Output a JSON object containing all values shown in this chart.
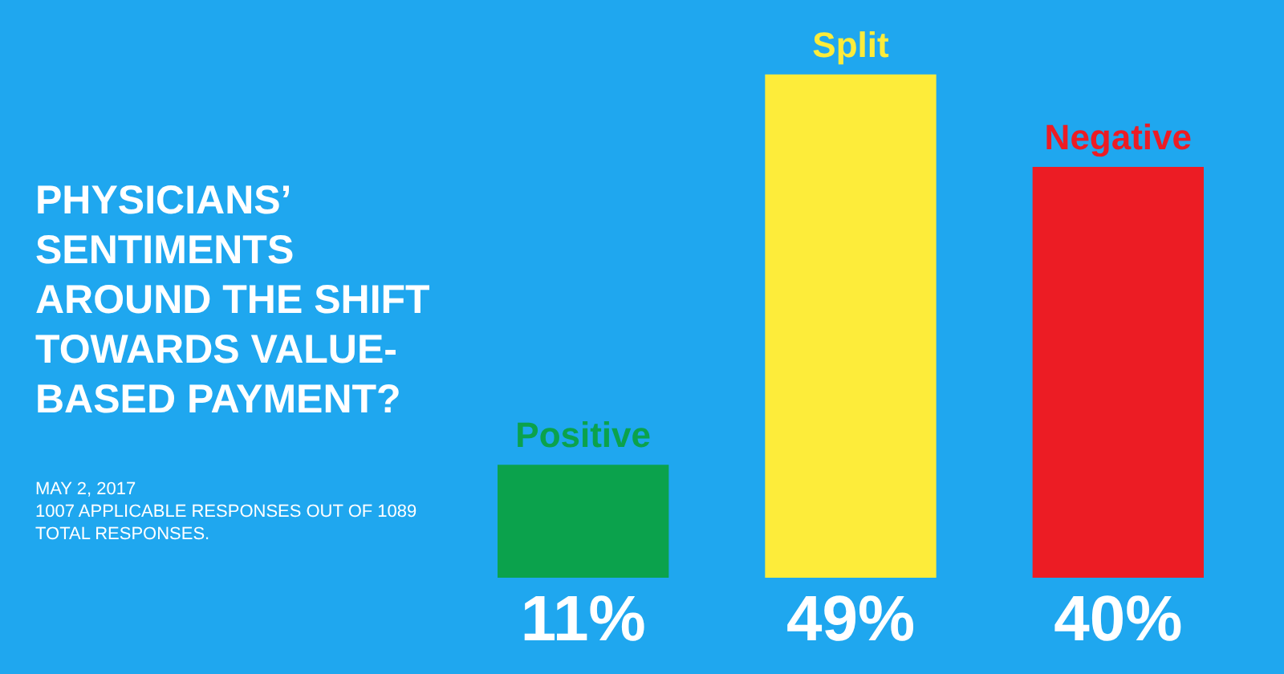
{
  "chart_data": {
    "type": "bar",
    "title": "PHYSICIANS’ SENTIMENTS AROUND THE SHIFT TOWARDS VALUE-BASED PAYMENT?",
    "categories": [
      "Positive",
      "Split",
      "Negative"
    ],
    "values": [
      11,
      49,
      40
    ],
    "colors": [
      "#0ba24c",
      "#fdec3a",
      "#ec1c24"
    ],
    "value_labels": [
      "11%",
      "49%",
      "40%"
    ],
    "annotations": [
      "MAY 2, 2017",
      "1007 APPLICABLE RESPONSES OUT OF 1089 TOTAL RESPONSES."
    ]
  }
}
